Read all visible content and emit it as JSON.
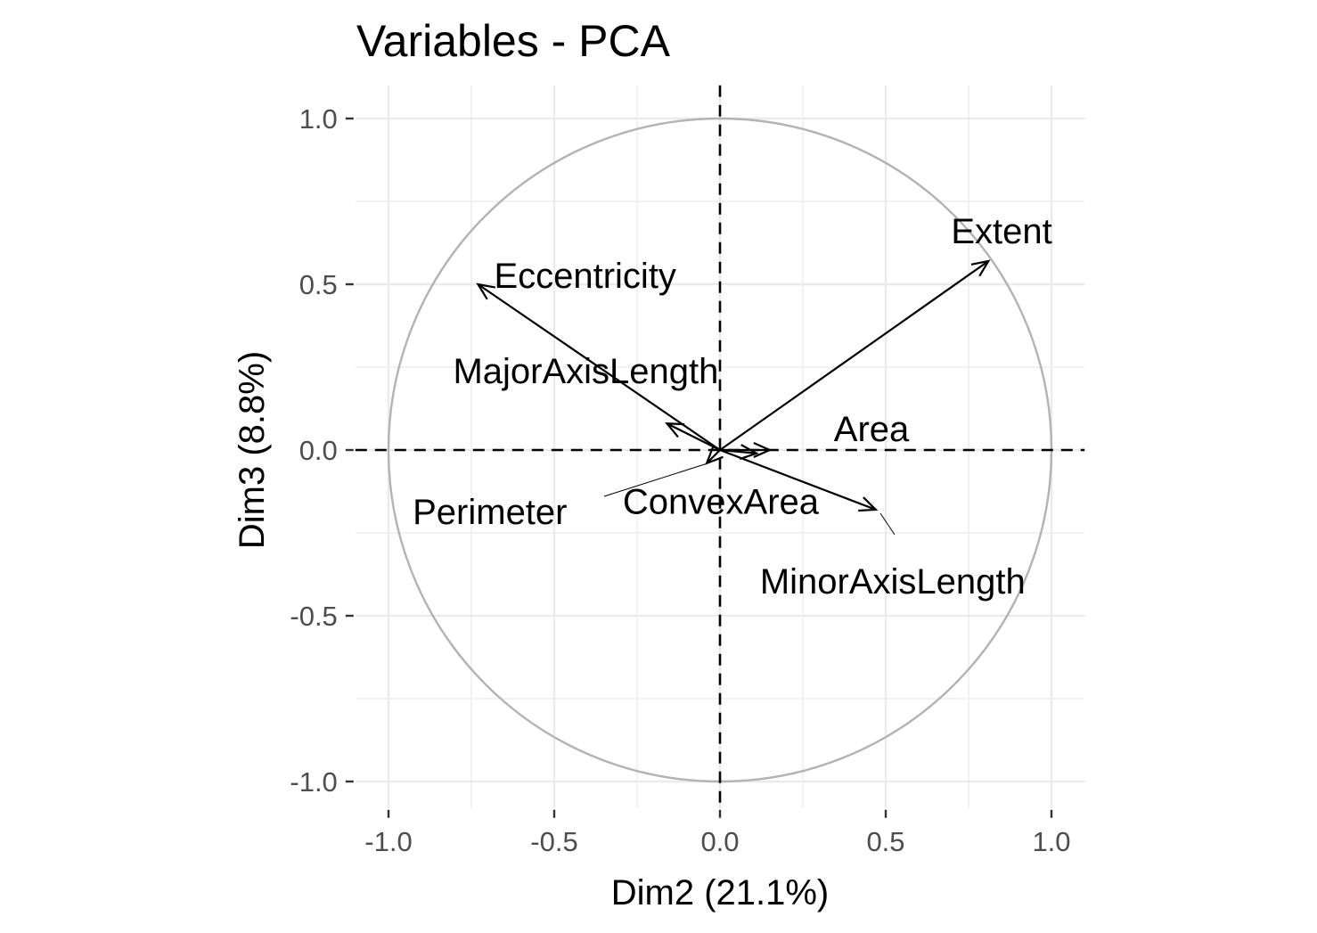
{
  "chart_data": {
    "type": "scatter",
    "title": "Variables - PCA",
    "xlabel": "Dim2 (21.1%)",
    "ylabel": "Dim3 (8.8%)",
    "xlim": [
      -1.1,
      1.1
    ],
    "ylim": [
      -1.08,
      1.1
    ],
    "x_ticks": [
      -1.0,
      -0.5,
      0.0,
      0.5,
      1.0
    ],
    "y_ticks": [
      -1.0,
      -0.5,
      0.0,
      0.5,
      1.0
    ],
    "x_tick_labels": [
      "-1.0",
      "-0.5",
      "0.0",
      "0.5",
      "1.0"
    ],
    "y_tick_labels": [
      "-1.0",
      "-0.5",
      "0.0",
      "0.5",
      "1.0"
    ],
    "grid": true,
    "correlation_circle": true,
    "colors": {
      "arrow": "#000000",
      "circle": "#b3b3b3",
      "grid": "#ebebeb",
      "reference_lines": "#000000"
    },
    "variables": [
      {
        "name": "Area",
        "x": 0.15,
        "y": 0.0
      },
      {
        "name": "Perimeter",
        "x": -0.04,
        "y": -0.04
      },
      {
        "name": "MajorAxisLength",
        "x": -0.16,
        "y": 0.08
      },
      {
        "name": "MinorAxisLength",
        "x": 0.47,
        "y": -0.18
      },
      {
        "name": "Eccentricity",
        "x": -0.73,
        "y": 0.5
      },
      {
        "name": "ConvexArea",
        "x": 0.11,
        "y": -0.01
      },
      {
        "name": "Extent",
        "x": 0.81,
        "y": 0.57
      }
    ]
  }
}
